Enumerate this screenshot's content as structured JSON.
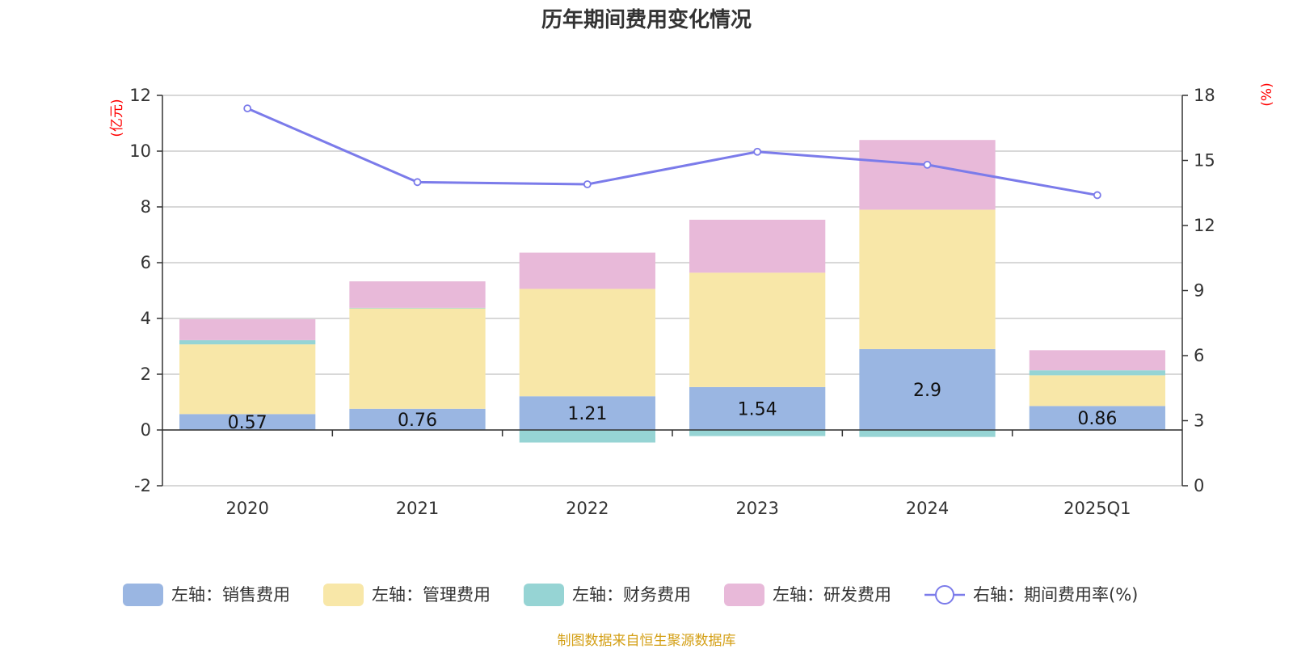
{
  "title": "历年期间费用变化情况",
  "footer": "制图数据来自恒生聚源数据库",
  "chart_data": {
    "type": "bar",
    "stacked": true,
    "categories": [
      "2020",
      "2021",
      "2022",
      "2023",
      "2024",
      "2025Q1"
    ],
    "left_axis": {
      "unit": "(亿元)",
      "ylim": [
        -2,
        12
      ],
      "ticks": [
        -2,
        0,
        2,
        4,
        6,
        8,
        10,
        12
      ]
    },
    "right_axis": {
      "unit": "(%)",
      "ylim": [
        0,
        18
      ],
      "ticks": [
        0,
        3,
        6,
        9,
        12,
        15,
        18
      ]
    },
    "grid": true,
    "legend_position": "bottom",
    "series": [
      {
        "name": "左轴：销售费用",
        "axis": "left",
        "type": "bar",
        "color": "#9ab6e2",
        "values": [
          0.57,
          0.76,
          1.21,
          1.54,
          2.9,
          0.86
        ],
        "labels": [
          "0.57",
          "0.76",
          "1.21",
          "1.54",
          "2.9",
          "0.86"
        ]
      },
      {
        "name": "左轴：管理费用",
        "axis": "left",
        "type": "bar",
        "color": "#f8e7a8",
        "values": [
          2.5,
          3.6,
          3.85,
          4.1,
          5.0,
          1.1
        ]
      },
      {
        "name": "左轴：财务费用",
        "axis": "left",
        "type": "bar",
        "color": "#96d4d4",
        "values": [
          0.15,
          0.02,
          -0.45,
          -0.22,
          -0.25,
          0.18
        ]
      },
      {
        "name": "左轴：研发费用",
        "axis": "left",
        "type": "bar",
        "color": "#e8b9d9",
        "values": [
          0.75,
          0.95,
          1.3,
          1.9,
          2.5,
          0.72
        ]
      },
      {
        "name": "右轴：期间费用率(%)",
        "axis": "right",
        "type": "line",
        "color": "#7b7bea",
        "values": [
          17.4,
          14.0,
          13.9,
          15.4,
          14.8,
          13.4
        ]
      }
    ]
  }
}
